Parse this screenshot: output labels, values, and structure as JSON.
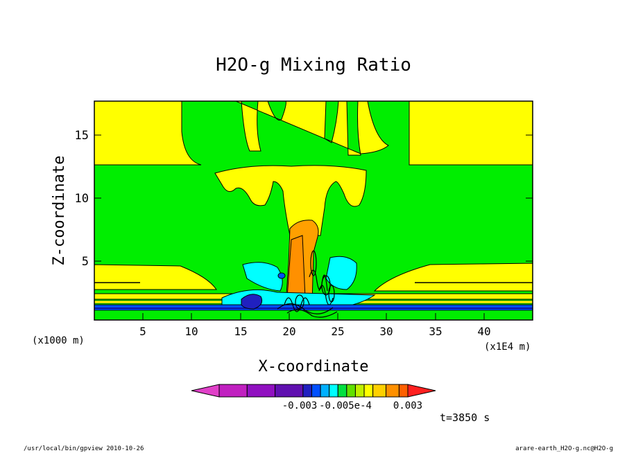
{
  "chart_data": {
    "type": "heatmap",
    "title": "H2O-g Mixing Ratio",
    "xlabel": "X-coordinate",
    "ylabel": "Z-coordinate",
    "x_unit_note": "(x1000 m)",
    "x_axis_unit": "(x1E4 m)",
    "xlim": [
      0,
      45
    ],
    "ylim": [
      0,
      17.5
    ],
    "x_ticks": [
      "5",
      "10",
      "15",
      "20",
      "25",
      "30",
      "35",
      "40"
    ],
    "y_ticks": [
      "5",
      "10",
      "15"
    ],
    "colorbar": {
      "colors": [
        "#e040c8",
        "#c020c0",
        "#9010c0",
        "#6010b0",
        "#2020c0",
        "#0050ff",
        "#00b0ff",
        "#00ffff",
        "#00e040",
        "#60e000",
        "#c0f000",
        "#ffff00",
        "#ffd000",
        "#ff9000",
        "#ff6000",
        "#ff2020"
      ],
      "tick_labels": [
        "-0.003",
        "-0.005e-4",
        "0.003"
      ]
    },
    "time_label": "t=3850 s"
  },
  "footer": {
    "left": "/usr/local/bin/gpview  2010-10-26",
    "right": "arare-earth_H2O-g.nc@H2O-g"
  },
  "colors": {
    "green": "#00ee00",
    "yellow": "#ffff00",
    "orange": "#ffa000",
    "cyan": "#00ffff",
    "blue": "#0000ff",
    "purple": "#6000b0"
  }
}
